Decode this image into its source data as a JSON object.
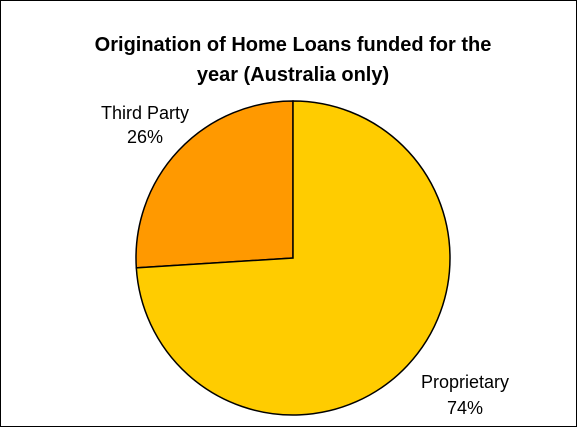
{
  "chart_data": {
    "type": "pie",
    "title_lines": [
      "Origination of Home Loans funded for the",
      "year (Australia only)"
    ],
    "slices": [
      {
        "name": "Third Party",
        "value": 26,
        "value_label": "26%",
        "color": "#FF9900"
      },
      {
        "name": "Proprietary",
        "value": 74,
        "value_label": "74%",
        "color": "#FFCC00"
      }
    ],
    "border_color": "#000000",
    "legend": "none"
  }
}
